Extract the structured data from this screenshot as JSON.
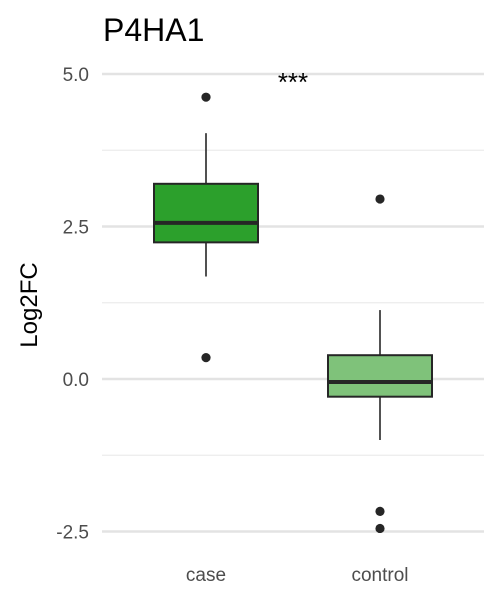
{
  "chart_data": {
    "type": "box",
    "title": "P4HA1",
    "xlabel": "",
    "ylabel": "Log2FC",
    "categories": [
      "case",
      "control"
    ],
    "ylim": [
      -2.75,
      5.3
    ],
    "yticks": [
      5.0,
      2.5,
      0.0,
      -2.5
    ],
    "ytick_labels": [
      "5.0",
      "2.5",
      "0.0",
      "-2.5"
    ],
    "minor_gridlines": [
      3.75,
      1.25,
      -1.25
    ],
    "grid": true,
    "legend": "none",
    "boxes": [
      {
        "category": "case",
        "color": "#2ca02c",
        "whisker_low": 1.68,
        "q1": 2.24,
        "median": 2.56,
        "q3": 3.2,
        "whisker_high": 4.03,
        "outliers": [
          4.62,
          0.35
        ]
      },
      {
        "category": "control",
        "color": "#7fc27a",
        "whisker_low": -1.0,
        "q1": -0.29,
        "median": -0.05,
        "q3": 0.39,
        "whisker_high": 1.13,
        "outliers": [
          2.95,
          -2.17,
          -2.45
        ]
      }
    ],
    "annotations": [
      {
        "text": "***",
        "between": [
          "case",
          "control"
        ]
      }
    ]
  }
}
